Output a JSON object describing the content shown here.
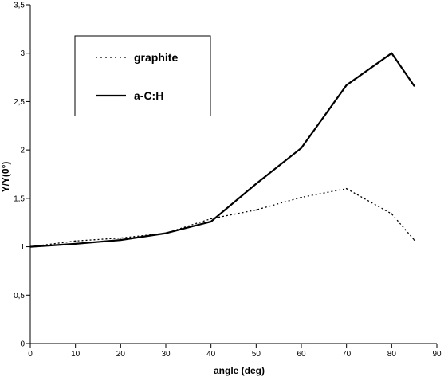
{
  "chart_data": {
    "type": "line",
    "title": "",
    "xlabel": "angle (deg)",
    "ylabel": "Y/Y(0°)",
    "xlim": [
      0,
      90
    ],
    "ylim": [
      0,
      3.5
    ],
    "x_ticks": [
      "0",
      "10",
      "20",
      "30",
      "40",
      "50",
      "60",
      "70",
      "80",
      "90"
    ],
    "y_ticks": [
      "0",
      "0,5",
      "1",
      "1,5",
      "2",
      "2,5",
      "3",
      "3,5"
    ],
    "grid": false,
    "legend_position": "top-left",
    "series": [
      {
        "name": "graphite",
        "style": "dotted",
        "color": "#000000",
        "x": [
          0,
          10,
          20,
          30,
          40,
          50,
          60,
          70,
          80,
          85
        ],
        "y": [
          1.0,
          1.06,
          1.09,
          1.14,
          1.29,
          1.38,
          1.51,
          1.6,
          1.34,
          1.07
        ]
      },
      {
        "name": "a-C:H",
        "style": "solid",
        "color": "#000000",
        "x": [
          0,
          10,
          20,
          30,
          40,
          50,
          60,
          70,
          80,
          85
        ],
        "y": [
          1.0,
          1.03,
          1.07,
          1.14,
          1.26,
          1.65,
          2.02,
          2.67,
          3.0,
          2.66
        ]
      }
    ]
  }
}
